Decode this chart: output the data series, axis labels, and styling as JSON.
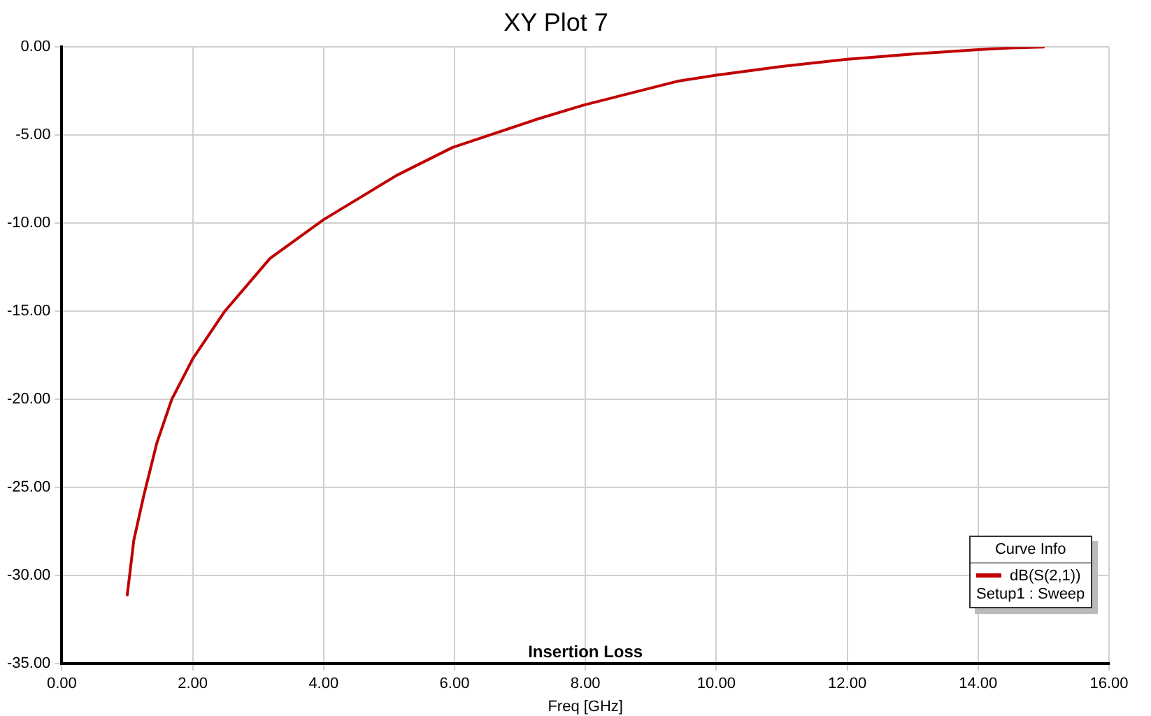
{
  "chart_data": {
    "type": "line",
    "title": "XY Plot 7",
    "xlabel": "Freq [GHz]",
    "legend_title": "Curve Info",
    "annotations": [
      "Insertion Loss",
      "Setup1 : Sweep"
    ],
    "x": [
      1.0,
      1.1,
      1.25,
      1.45,
      1.68,
      2.0,
      2.49,
      3.18,
      4.0,
      5.11,
      5.97,
      7.26,
      7.97,
      9.4,
      10.0,
      11.0,
      12.0,
      13.0,
      14.0,
      14.5,
      15.0
    ],
    "series": [
      {
        "name": "dB(S(2,1))",
        "color": "#c00000",
        "values": [
          -31.1,
          -28.0,
          -25.5,
          -22.5,
          -20.0,
          -17.7,
          -15.0,
          -12.0,
          -9.8,
          -7.3,
          -5.7,
          -4.1,
          -3.3,
          -1.95,
          -1.6,
          -1.1,
          -0.7,
          -0.4,
          -0.15,
          -0.05,
          0.0
        ]
      }
    ],
    "xlim": [
      0,
      16
    ],
    "ylim": [
      -35,
      0
    ],
    "xticks": [
      {
        "value": 0,
        "label": "0.00"
      },
      {
        "value": 2,
        "label": "2.00"
      },
      {
        "value": 4,
        "label": "4.00"
      },
      {
        "value": 6,
        "label": "6.00"
      },
      {
        "value": 8,
        "label": "8.00"
      },
      {
        "value": 10,
        "label": "10.00"
      },
      {
        "value": 12,
        "label": "12.00"
      },
      {
        "value": 14,
        "label": "14.00"
      },
      {
        "value": 16,
        "label": "16.00"
      }
    ],
    "yticks": [
      {
        "value": 0,
        "label": "0.00"
      },
      {
        "value": -5,
        "label": "-5.00"
      },
      {
        "value": -10,
        "label": "-10.00"
      },
      {
        "value": -15,
        "label": "-15.00"
      },
      {
        "value": -20,
        "label": "-20.00"
      },
      {
        "value": -25,
        "label": "-25.00"
      },
      {
        "value": -30,
        "label": "-30.00"
      },
      {
        "value": -35,
        "label": "-35.00"
      }
    ],
    "grid": true,
    "legend": "bottom right",
    "marker": "none",
    "line_style": "solid"
  }
}
